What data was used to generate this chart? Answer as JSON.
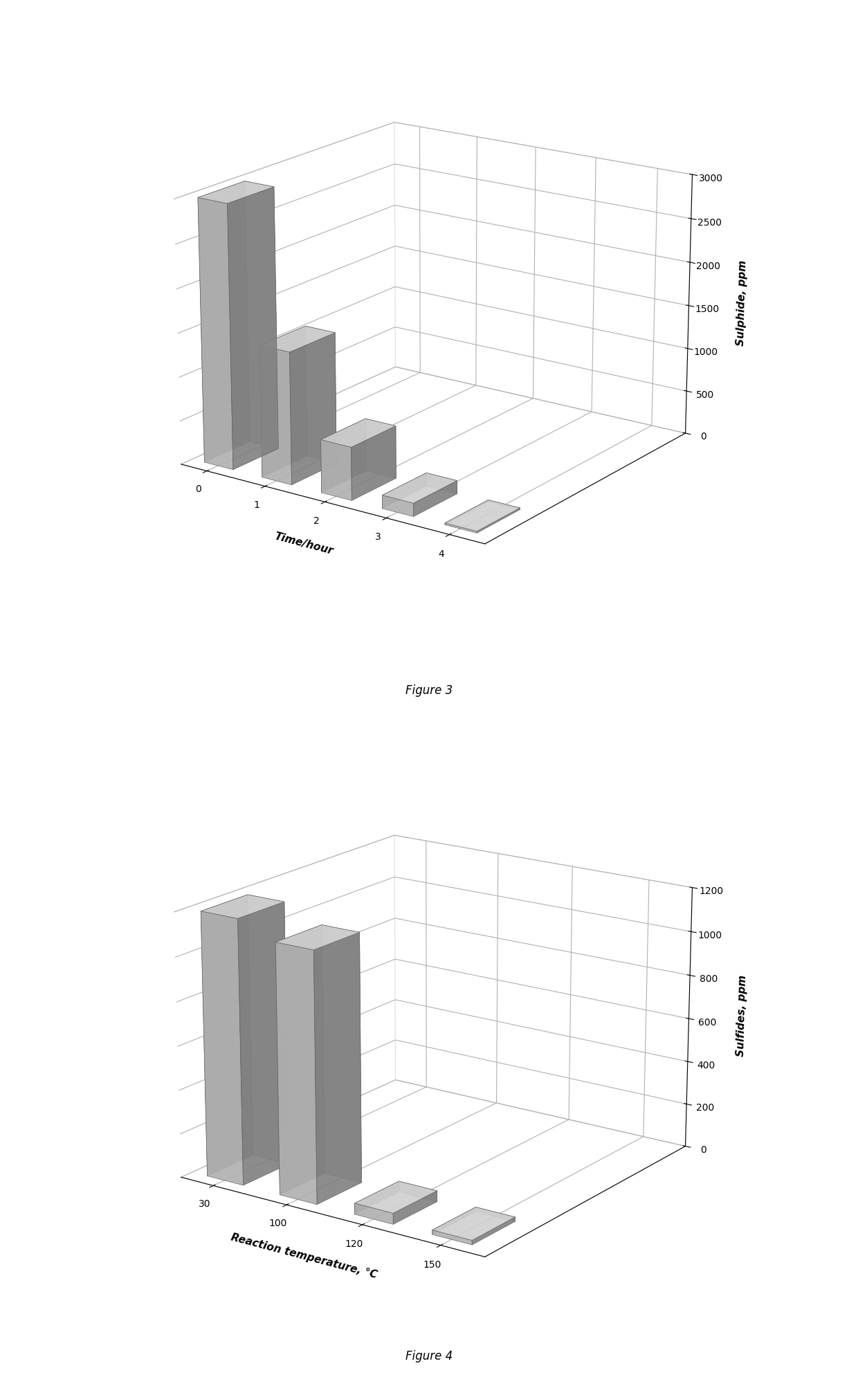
{
  "fig3": {
    "categories": [
      "0",
      "1",
      "2",
      "3",
      "4"
    ],
    "values": [
      3000,
      1500,
      600,
      150,
      20
    ],
    "ylabel": "Sulphide, ppm",
    "xlabel": "Time/hour",
    "zlim": [
      0,
      3000
    ],
    "zticks": [
      0,
      500,
      1000,
      1500,
      2000,
      2500,
      3000
    ],
    "caption": "Figure 3"
  },
  "fig4": {
    "categories": [
      "30",
      "100",
      "120",
      "150"
    ],
    "values": [
      1200,
      1130,
      50,
      20
    ],
    "ylabel": "Sulfides, ppm",
    "xlabel": "Reaction temperature, °C",
    "zlim": [
      0,
      1200
    ],
    "zticks": [
      0,
      200,
      400,
      600,
      800,
      1000,
      1200
    ],
    "caption": "Figure 4"
  },
  "bar_color_face": "#b0b0b0",
  "bar_color_dark": "#808080",
  "bar_color_light": "#d0d0d0",
  "bar_width": 0.5,
  "bar_depth": 0.4,
  "elev": 18,
  "azim": -55,
  "background_color": "#ffffff",
  "caption_fontsize": 12,
  "axis_label_fontsize": 11,
  "tick_fontsize": 10
}
